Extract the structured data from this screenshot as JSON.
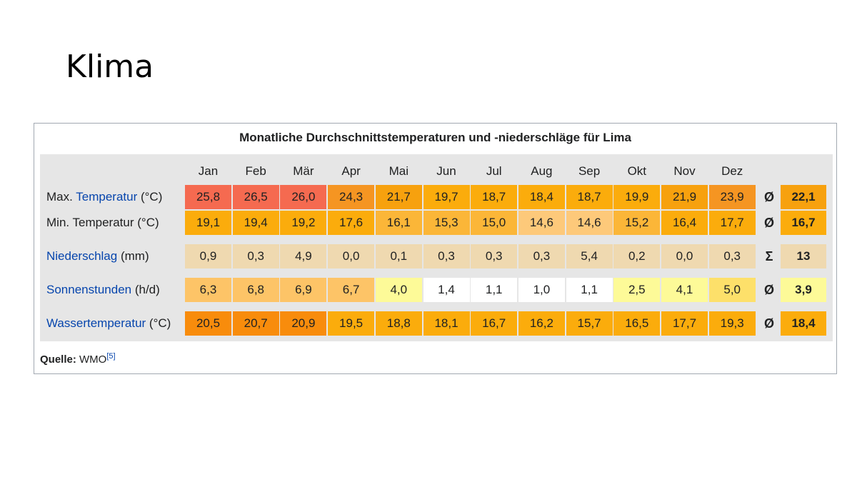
{
  "slide": {
    "title": "Klima"
  },
  "table": {
    "caption": "Monatliche Durchschnittstemperaturen und -niederschläge für Lima",
    "months": [
      "Jan",
      "Feb",
      "Mär",
      "Apr",
      "Mai",
      "Jun",
      "Jul",
      "Aug",
      "Sep",
      "Okt",
      "Nov",
      "Dez"
    ],
    "rows": [
      {
        "label_prefix": "Max. ",
        "label_link": "Temperatur",
        "label_suffix": " (°C)",
        "values": [
          "25,8",
          "26,5",
          "26,0",
          "24,3",
          "21,7",
          "19,7",
          "18,7",
          "18,4",
          "18,7",
          "19,9",
          "21,9",
          "23,9"
        ],
        "colors": [
          "#f56a50",
          "#f56a50",
          "#f56a50",
          "#f59522",
          "#f7a10e",
          "#fbac0c",
          "#fbac0c",
          "#fbac0c",
          "#fbac0c",
          "#fbac0c",
          "#f7a10e",
          "#f59522"
        ],
        "symbol": "Ø",
        "summary": "22,1",
        "summary_color": "#f7a10e"
      },
      {
        "label_prefix": "Min. Temperatur (°C)",
        "label_link": "",
        "label_suffix": "",
        "values": [
          "19,1",
          "19,4",
          "19,2",
          "17,6",
          "16,1",
          "15,3",
          "15,0",
          "14,6",
          "14,6",
          "15,2",
          "16,4",
          "17,7"
        ],
        "colors": [
          "#fbac0c",
          "#fbac0c",
          "#fbac0c",
          "#fbac0c",
          "#fbb638",
          "#fbb638",
          "#fbb638",
          "#fdc97a",
          "#fdc97a",
          "#fbb638",
          "#fbac0c",
          "#fbac0c"
        ],
        "symbol": "Ø",
        "summary": "16,7",
        "summary_color": "#fbac0c"
      },
      {
        "label_prefix": "",
        "label_link": "Niederschlag",
        "label_suffix": " (mm)",
        "values": [
          "0,9",
          "0,3",
          "4,9",
          "0,0",
          "0,1",
          "0,3",
          "0,3",
          "0,3",
          "5,4",
          "0,2",
          "0,0",
          "0,3"
        ],
        "colors": [
          "#efd9b0",
          "#efd9b0",
          "#efd9b0",
          "#efd9b0",
          "#efd9b0",
          "#efd9b0",
          "#efd9b0",
          "#efd9b0",
          "#efd9b0",
          "#efd9b0",
          "#efd9b0",
          "#efd9b0"
        ],
        "symbol": "Σ",
        "summary": "13",
        "summary_color": "#efd9b0"
      },
      {
        "label_prefix": "",
        "label_link": "Sonnenstunden",
        "label_suffix": " (h/d)",
        "values": [
          "6,3",
          "6,8",
          "6,9",
          "6,7",
          "4,0",
          "1,4",
          "1,1",
          "1,0",
          "1,1",
          "2,5",
          "4,1",
          "5,0"
        ],
        "colors": [
          "#fdc467",
          "#fdc467",
          "#fdc467",
          "#fdc467",
          "#fdfa98",
          "#ffffff",
          "#ffffff",
          "#ffffff",
          "#ffffff",
          "#fdfa98",
          "#fdfa98",
          "#fde06a"
        ],
        "symbol": "Ø",
        "summary": "3,9",
        "summary_color": "#fdfa98"
      },
      {
        "label_prefix": "",
        "label_link": "Wassertemperatur",
        "label_suffix": " (°C)",
        "values": [
          "20,5",
          "20,7",
          "20,9",
          "19,5",
          "18,8",
          "18,1",
          "16,7",
          "16,2",
          "15,7",
          "16,5",
          "17,7",
          "19,3"
        ],
        "colors": [
          "#f88c0c",
          "#f88c0c",
          "#f88c0c",
          "#fbac0c",
          "#fbac0c",
          "#fbac0c",
          "#fbac0c",
          "#fbac0c",
          "#fbac0c",
          "#fbac0c",
          "#fbac0c",
          "#fbac0c"
        ],
        "symbol": "Ø",
        "summary": "18,4",
        "summary_color": "#fbac0c"
      }
    ],
    "source_label": "Quelle:",
    "source_text": " WMO",
    "source_ref": "[5]"
  }
}
